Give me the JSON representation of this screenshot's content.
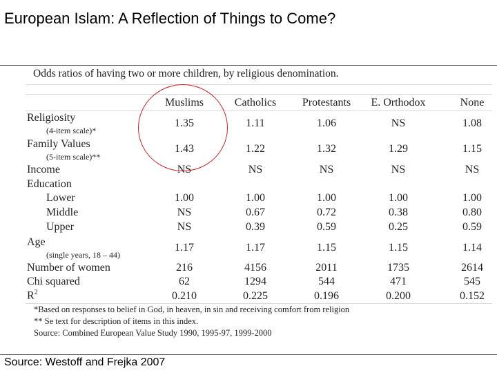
{
  "slide": {
    "title": "European Islam: A Reflection of Things to Come?",
    "source": "Source: Westoff and Frejka 2007"
  },
  "table": {
    "caption": "Odds ratios of having two or more children, by religious denomination.",
    "columns": [
      "Muslims",
      "Catholics",
      "Protestants",
      "E. Orthodox",
      "None"
    ],
    "rows": [
      {
        "label": "Religiosity",
        "values": [
          "1.35",
          "1.11",
          "1.06",
          "NS",
          "1.08"
        ]
      },
      {
        "label": "(4-item scale)*",
        "values": []
      },
      {
        "label": "Family Values",
        "values": [
          "1.43",
          "1.22",
          "1.32",
          "1.29",
          "1.15"
        ]
      },
      {
        "label": "(5-item scale)**",
        "values": []
      },
      {
        "label": "Income",
        "values": [
          "NS",
          "NS",
          "NS",
          "NS",
          "NS"
        ]
      },
      {
        "label": "Education",
        "values": []
      },
      {
        "label": "Lower",
        "values": [
          "1.00",
          "1.00",
          "1.00",
          "1.00",
          "1.00"
        ]
      },
      {
        "label": "Middle",
        "values": [
          "NS",
          "0.67",
          "0.72",
          "0.38",
          "0.80"
        ]
      },
      {
        "label": "Upper",
        "values": [
          "NS",
          "0.39",
          "0.59",
          "0.25",
          "0.59"
        ]
      },
      {
        "label": "Age",
        "values": [
          "1.17",
          "1.17",
          "1.15",
          "1.15",
          "1.14"
        ]
      },
      {
        "label": "(single years, 18 – 44)",
        "values": []
      },
      {
        "label": "Number of women",
        "values": [
          "216",
          "4156",
          "2011",
          "1735",
          "2614"
        ]
      },
      {
        "label": "Chi squared",
        "values": [
          "62",
          "1294",
          "544",
          "471",
          "545"
        ]
      },
      {
        "label_base": "R",
        "label_sup": "2",
        "values": [
          "0.210",
          "0.225",
          "0.196",
          "0.200",
          "0.152"
        ]
      }
    ],
    "footnotes": [
      "*Based on responses to belief in God, in heaven, in sin and receiving comfort from religion",
      "** Se text for description of items in this index.",
      "Source: Combined European Value Study 1990, 1995-97, 1999-2000"
    ]
  },
  "colors": {
    "highlight_circle": "#cc2222"
  }
}
